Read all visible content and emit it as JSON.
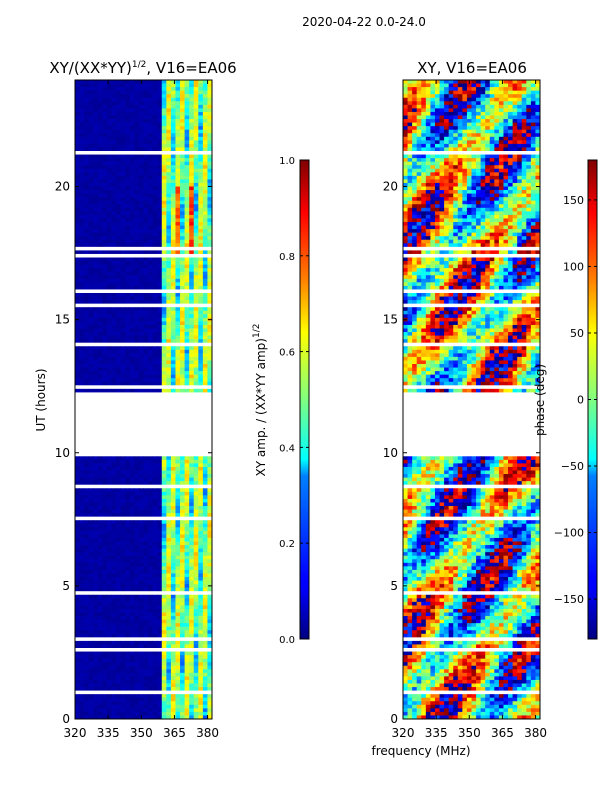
{
  "figure": {
    "suptitle": "2020-04-22 0.0-24.0"
  },
  "chart_data": [
    {
      "type": "heatmap",
      "title_main": "XY/(XX*YY)",
      "title_sup": "1/2",
      "title_rest": ", V16=EA06",
      "xlabel": "",
      "ylabel": "UT (hours)",
      "xlim": [
        320,
        382
      ],
      "ylim": [
        0,
        24
      ],
      "xticks": [
        320,
        335,
        350,
        365,
        380
      ],
      "yticks": [
        0,
        5,
        10,
        15,
        20
      ],
      "colorbar": {
        "label_main": "XY amp. / (XX*YY amp)",
        "label_sup": "1/2",
        "range": [
          0.0,
          1.0
        ],
        "ticks": [
          0.0,
          0.2,
          0.4,
          0.6,
          0.8,
          1.0
        ],
        "tick_labels": [
          "0.0",
          "0.2",
          "0.4",
          "0.6",
          "0.8",
          "1.0"
        ]
      },
      "gap_hours": [
        12.3,
        9.8
      ]
    },
    {
      "type": "heatmap",
      "title": "XY, V16=EA06",
      "xlabel": "frequency (MHz)",
      "ylabel": "",
      "xlim": [
        320,
        382
      ],
      "ylim": [
        0,
        24
      ],
      "xticks": [
        320,
        335,
        350,
        365,
        380
      ],
      "yticks": [
        0,
        5,
        10,
        15,
        20
      ],
      "colorbar": {
        "label": "phase (deg)",
        "range": [
          -180,
          180
        ],
        "ticks": [
          -150,
          -100,
          -50,
          0,
          50,
          100,
          150
        ],
        "tick_labels": [
          "−150",
          "−100",
          "−50",
          "0",
          "50",
          "100",
          "150"
        ]
      },
      "gap_hours": [
        12.3,
        9.8
      ]
    }
  ],
  "colors": {
    "jet_low": "#00007f",
    "jet_high": "#7f0000",
    "background": "#ffffff"
  }
}
